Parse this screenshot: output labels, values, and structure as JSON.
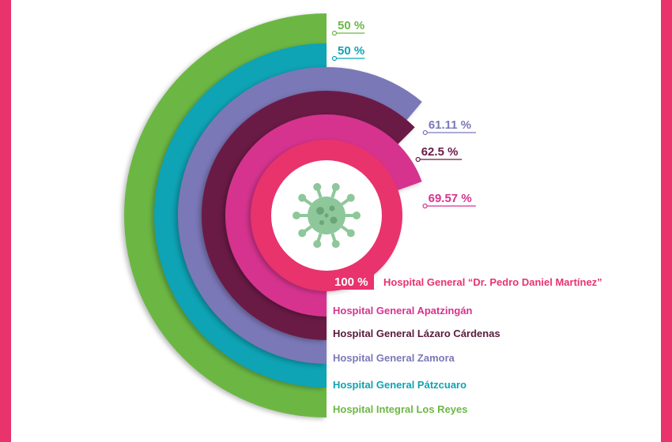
{
  "colors": {
    "frame": "#e8336d",
    "hospital_1": "#e8336d",
    "hospital_2": "#d6338f",
    "hospital_3": "#6a1b45",
    "hospital_4": "#7b78b8",
    "hospital_5": "#0ea3b5",
    "hospital_6": "#6cb744",
    "virus": "#8ec79a",
    "name_text_1": "#e8336d",
    "name_text_2": "#d6338f",
    "name_text_3": "#5a1a3c",
    "name_text_4": "#7b78b8",
    "name_text_5": "#0ea3b5",
    "name_text_6": "#6cb744"
  },
  "icons": {
    "center": "virus-icon"
  },
  "chart_data": {
    "type": "radial-bar",
    "title": "",
    "categories": [
      "Hospital General “Dr. Pedro Daniel Martínez”",
      "Hospital General Apatzingán",
      "Hospital General Lázaro Cárdenas",
      "Hospital General Zamora",
      "Hospital General Pátzcuaro",
      "Hospital Integral Los Reyes"
    ],
    "values": [
      100,
      69.57,
      62.5,
      61.11,
      50,
      50
    ],
    "value_labels": [
      "100 %",
      "69.57 %",
      "62.5 %",
      "61.11 %",
      "50 %",
      "50 %"
    ],
    "unit": "%",
    "range": [
      0,
      100
    ],
    "legend": "bottom-right"
  }
}
